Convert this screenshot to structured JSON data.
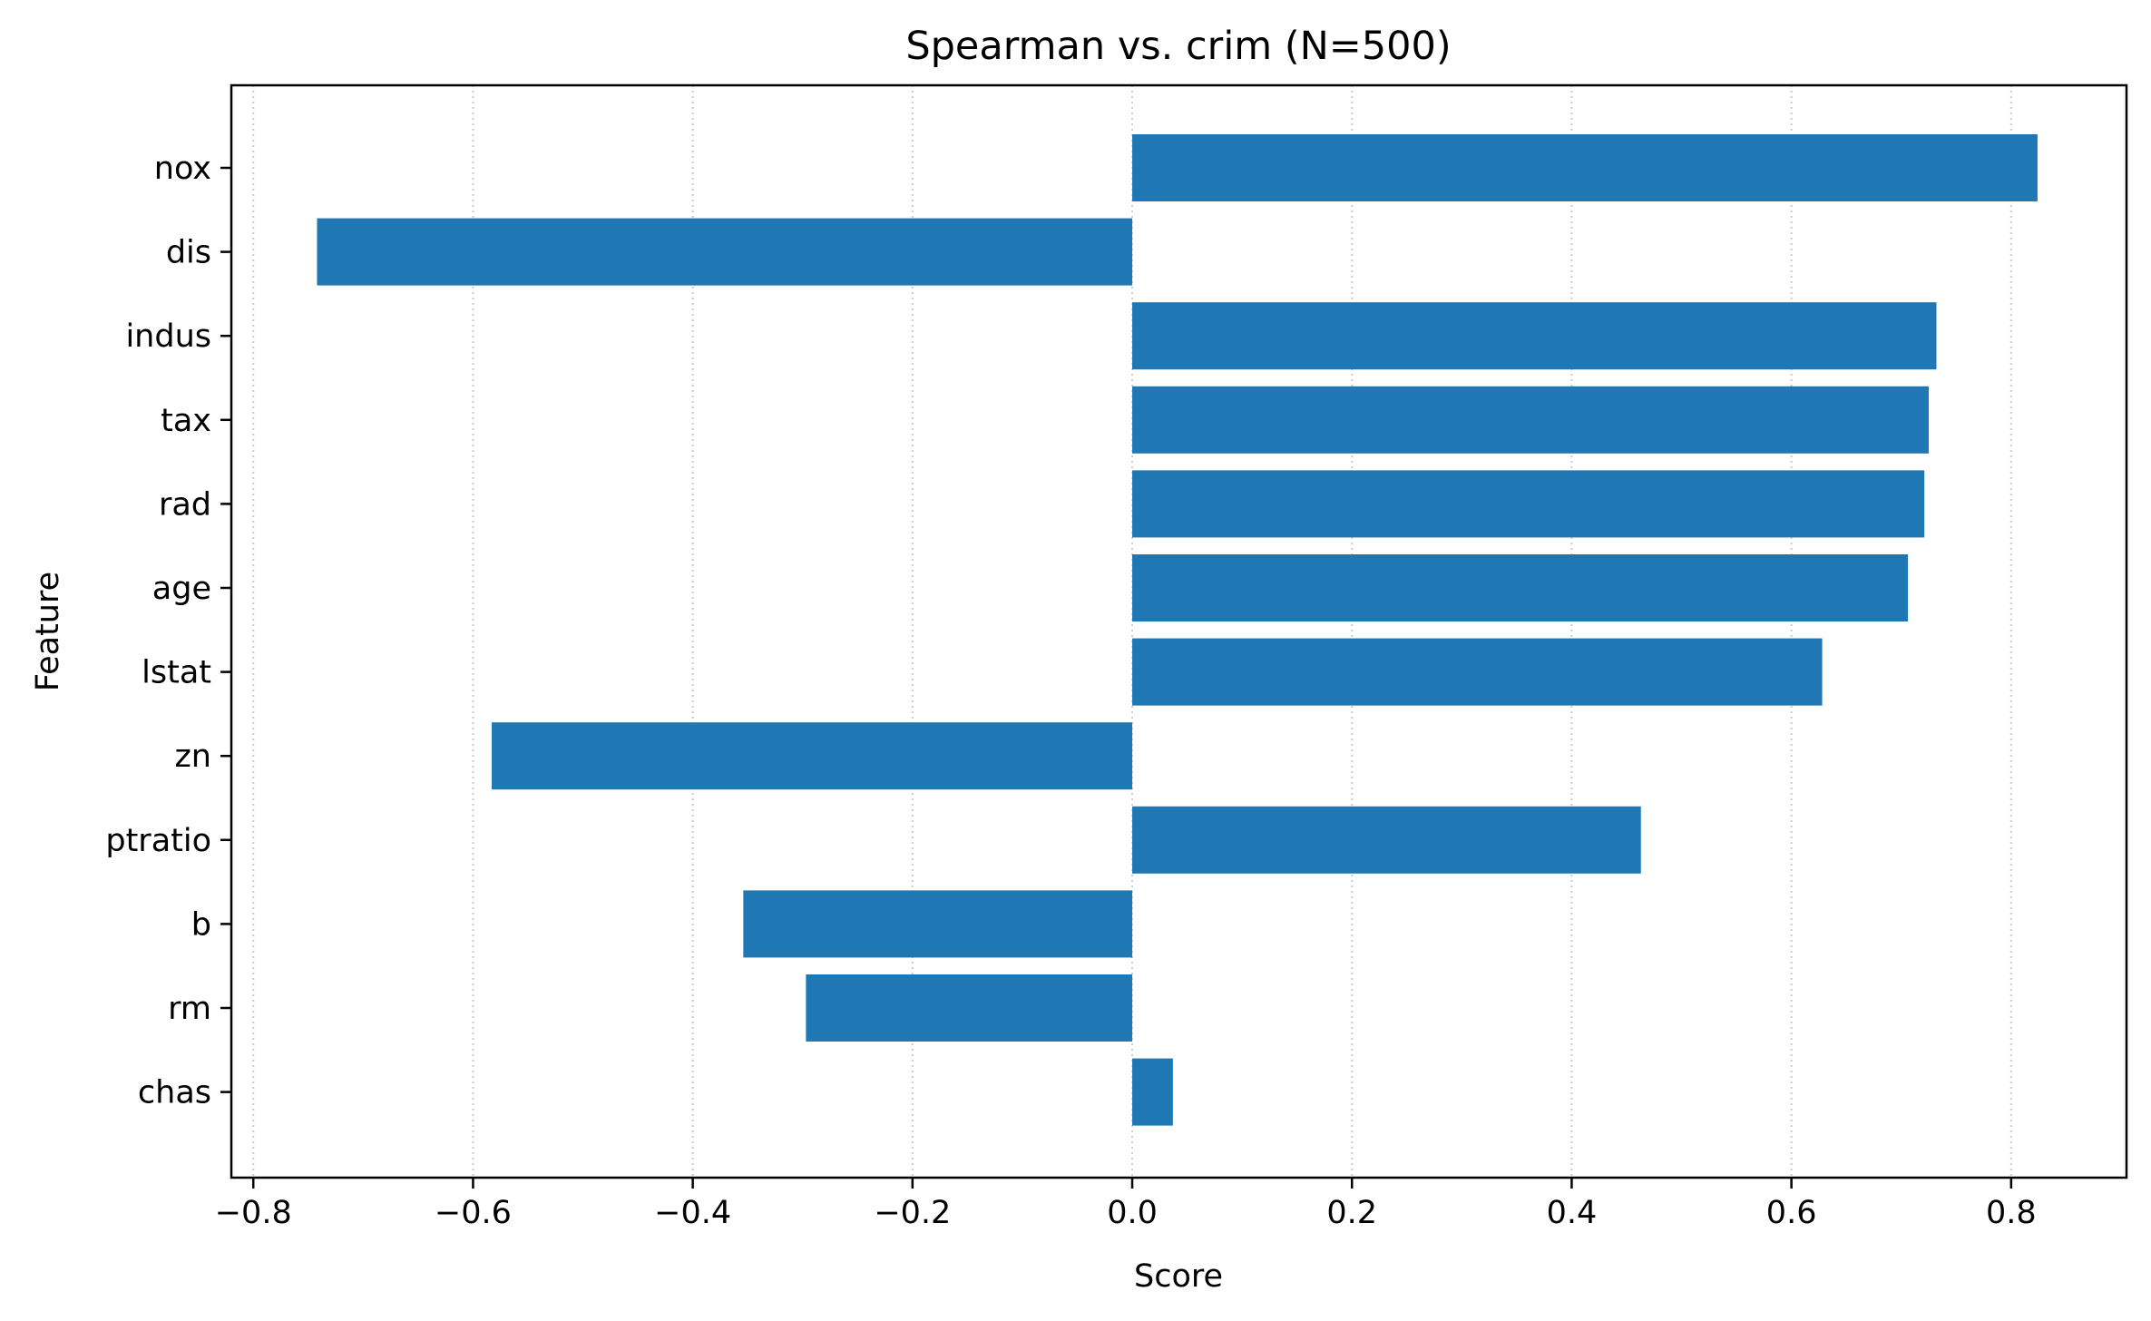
{
  "chart_data": {
    "type": "bar",
    "orientation": "horizontal",
    "title": "Spearman vs. crim  (N=500)",
    "xlabel": "Score",
    "ylabel": "Feature",
    "categories": [
      "nox",
      "dis",
      "indus",
      "tax",
      "rad",
      "age",
      "lstat",
      "zn",
      "ptratio",
      "b",
      "rm",
      "chas"
    ],
    "values": [
      0.824,
      -0.742,
      0.732,
      0.725,
      0.721,
      0.706,
      0.628,
      -0.583,
      0.463,
      -0.354,
      -0.297,
      0.037
    ],
    "xlim": [
      -0.82,
      0.905
    ],
    "xticks": [
      -0.8,
      -0.6,
      -0.4,
      -0.2,
      0.0,
      0.2,
      0.4,
      0.6,
      0.8
    ],
    "xtick_labels": [
      "−0.8",
      "−0.6",
      "−0.4",
      "−0.2",
      "0.0",
      "0.2",
      "0.4",
      "0.6",
      "0.8"
    ],
    "grid": "x-dotted",
    "legend": "none",
    "bar_color": "#1f77b4",
    "grid_color": "#cccccc"
  }
}
